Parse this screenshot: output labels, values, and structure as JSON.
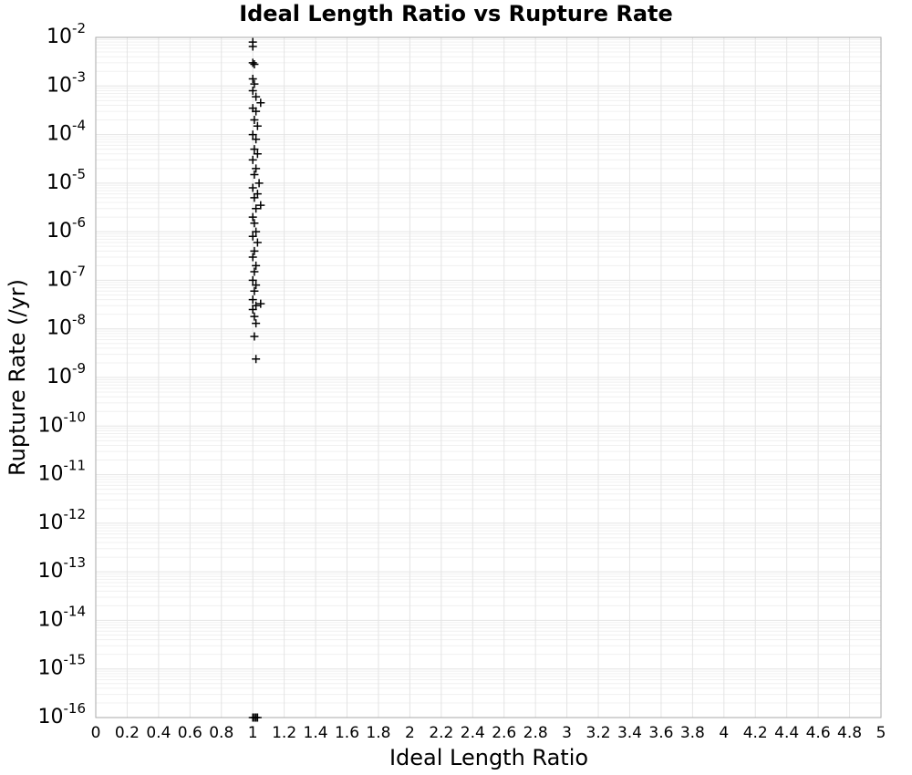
{
  "chart_data": {
    "type": "scatter",
    "title": "Ideal Length Ratio vs Rupture Rate",
    "x_label": "Ideal Length Ratio",
    "y_label": "Rupture Rate (/yr)",
    "y_scale": "log",
    "grid": true,
    "minor_grid": true,
    "marker": "+",
    "xlim": [
      0,
      5
    ],
    "ylim": [
      1e-16,
      0.01
    ],
    "xticks": [
      0,
      0.2,
      0.4,
      0.6,
      0.8,
      1,
      1.2,
      1.4,
      1.6,
      1.8,
      2,
      2.2,
      2.4,
      2.6,
      2.8,
      3,
      3.2,
      3.4,
      3.6,
      3.8,
      4,
      4.2,
      4.4,
      4.6,
      4.8,
      5
    ],
    "yticks": [
      {
        "value": 1e-16,
        "label": "10-16"
      },
      {
        "value": 1e-15,
        "label": "10-15"
      },
      {
        "value": 1e-14,
        "label": "10-14"
      },
      {
        "value": 1e-13,
        "label": "10-13"
      },
      {
        "value": 1e-12,
        "label": "10-12"
      },
      {
        "value": 1e-11,
        "label": "10-11"
      },
      {
        "value": 1e-10,
        "label": "10-10"
      },
      {
        "value": 1e-09,
        "label": "10-9"
      },
      {
        "value": 1e-08,
        "label": "10-8"
      },
      {
        "value": 1e-07,
        "label": "10-7"
      },
      {
        "value": 1e-06,
        "label": "10-6"
      },
      {
        "value": 1e-05,
        "label": "10-5"
      },
      {
        "value": 0.0001,
        "label": "10-4"
      },
      {
        "value": 0.001,
        "label": "10-3"
      },
      {
        "value": 0.01,
        "label": "10-2"
      }
    ],
    "series": [
      {
        "color": "#000000",
        "x": [
          1.0,
          1.0,
          1.0,
          1.01,
          1.0,
          1.01,
          1.0,
          1.02,
          1.05,
          1.0,
          1.02,
          1.01,
          1.03,
          1.0,
          1.02,
          1.01,
          1.03,
          1.0,
          1.02,
          1.01,
          1.04,
          1.0,
          1.03,
          1.01,
          1.02,
          1.05,
          1.0,
          1.01,
          1.02,
          1.0,
          1.03,
          1.01,
          1.0,
          1.02,
          1.01,
          1.0,
          1.02,
          1.01,
          1.0,
          1.05,
          1.02,
          1.0,
          1.01,
          1.02,
          1.01,
          1.02,
          1.0,
          1.01,
          1.02,
          1.03
        ],
        "values": [
          0.008,
          0.0065,
          0.003,
          0.0028,
          0.0014,
          0.0011,
          0.0008,
          0.0006,
          0.00045,
          0.00035,
          0.0003,
          0.0002,
          0.00015,
          0.0001,
          8e-05,
          5e-05,
          4e-05,
          3e-05,
          2e-05,
          1.5e-05,
          1e-05,
          8e-06,
          6e-06,
          5e-06,
          3e-06,
          3.5e-06,
          2e-06,
          1.5e-06,
          1e-06,
          8e-07,
          6e-07,
          4e-07,
          3e-07,
          2e-07,
          1.5e-07,
          1e-07,
          8e-08,
          6e-08,
          4e-08,
          3.3e-08,
          3e-08,
          2.5e-08,
          1.8e-08,
          1.3e-08,
          7e-09,
          2.4e-09,
          1e-16,
          1e-16,
          1e-16,
          1e-16
        ]
      }
    ]
  }
}
